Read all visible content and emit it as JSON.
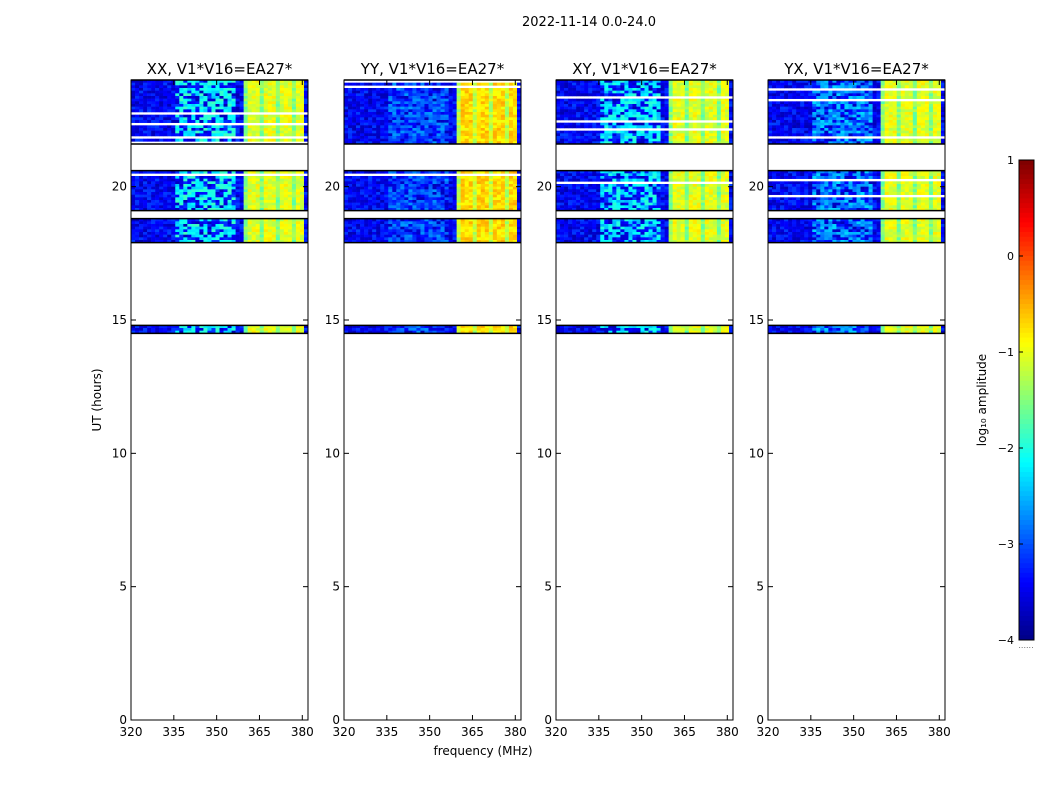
{
  "figure": {
    "suptitle": "2022-11-14 0.0-24.0",
    "xlabel": "frequency (MHz)",
    "ylabel": "UT (hours)",
    "colorbar_label": "log₁₀ amplitude",
    "colorbar_range": [
      -4,
      1
    ],
    "colorbar_ticks": [
      "1",
      "0",
      "−1",
      "−2",
      "−3",
      "−4"
    ],
    "colorbar_footer": "......"
  },
  "chart_data": {
    "type": "heatmap",
    "colormap": "jet",
    "xlim": [
      320,
      382
    ],
    "ylim": [
      0,
      24
    ],
    "xticks": [
      320,
      335,
      350,
      365,
      380
    ],
    "yticks": [
      0,
      5,
      10,
      15,
      20
    ],
    "data_blocks_ut": [
      {
        "from": 14.5,
        "to": 14.8
      },
      {
        "from": 17.9,
        "to": 18.8
      },
      {
        "from": 19.1,
        "to": 20.6
      },
      {
        "from": 21.6,
        "to": 24.0
      }
    ],
    "panels": [
      {
        "title": "XX, V1*V16=EA27*",
        "band_level": -1.0,
        "mid_level": -2.1,
        "base_level": -3.4
      },
      {
        "title": "YY, V1*V16=EA27*",
        "band_level": -0.7,
        "mid_level": -2.9,
        "base_level": -3.4
      },
      {
        "title": "XY, V1*V16=EA27*",
        "band_level": -1.0,
        "mid_level": -2.2,
        "base_level": -3.4
      },
      {
        "title": "YX, V1*V16=EA27*",
        "band_level": -1.0,
        "mid_level": -2.6,
        "base_level": -3.4
      }
    ],
    "bright_band_mhz": [
      360,
      382
    ]
  }
}
